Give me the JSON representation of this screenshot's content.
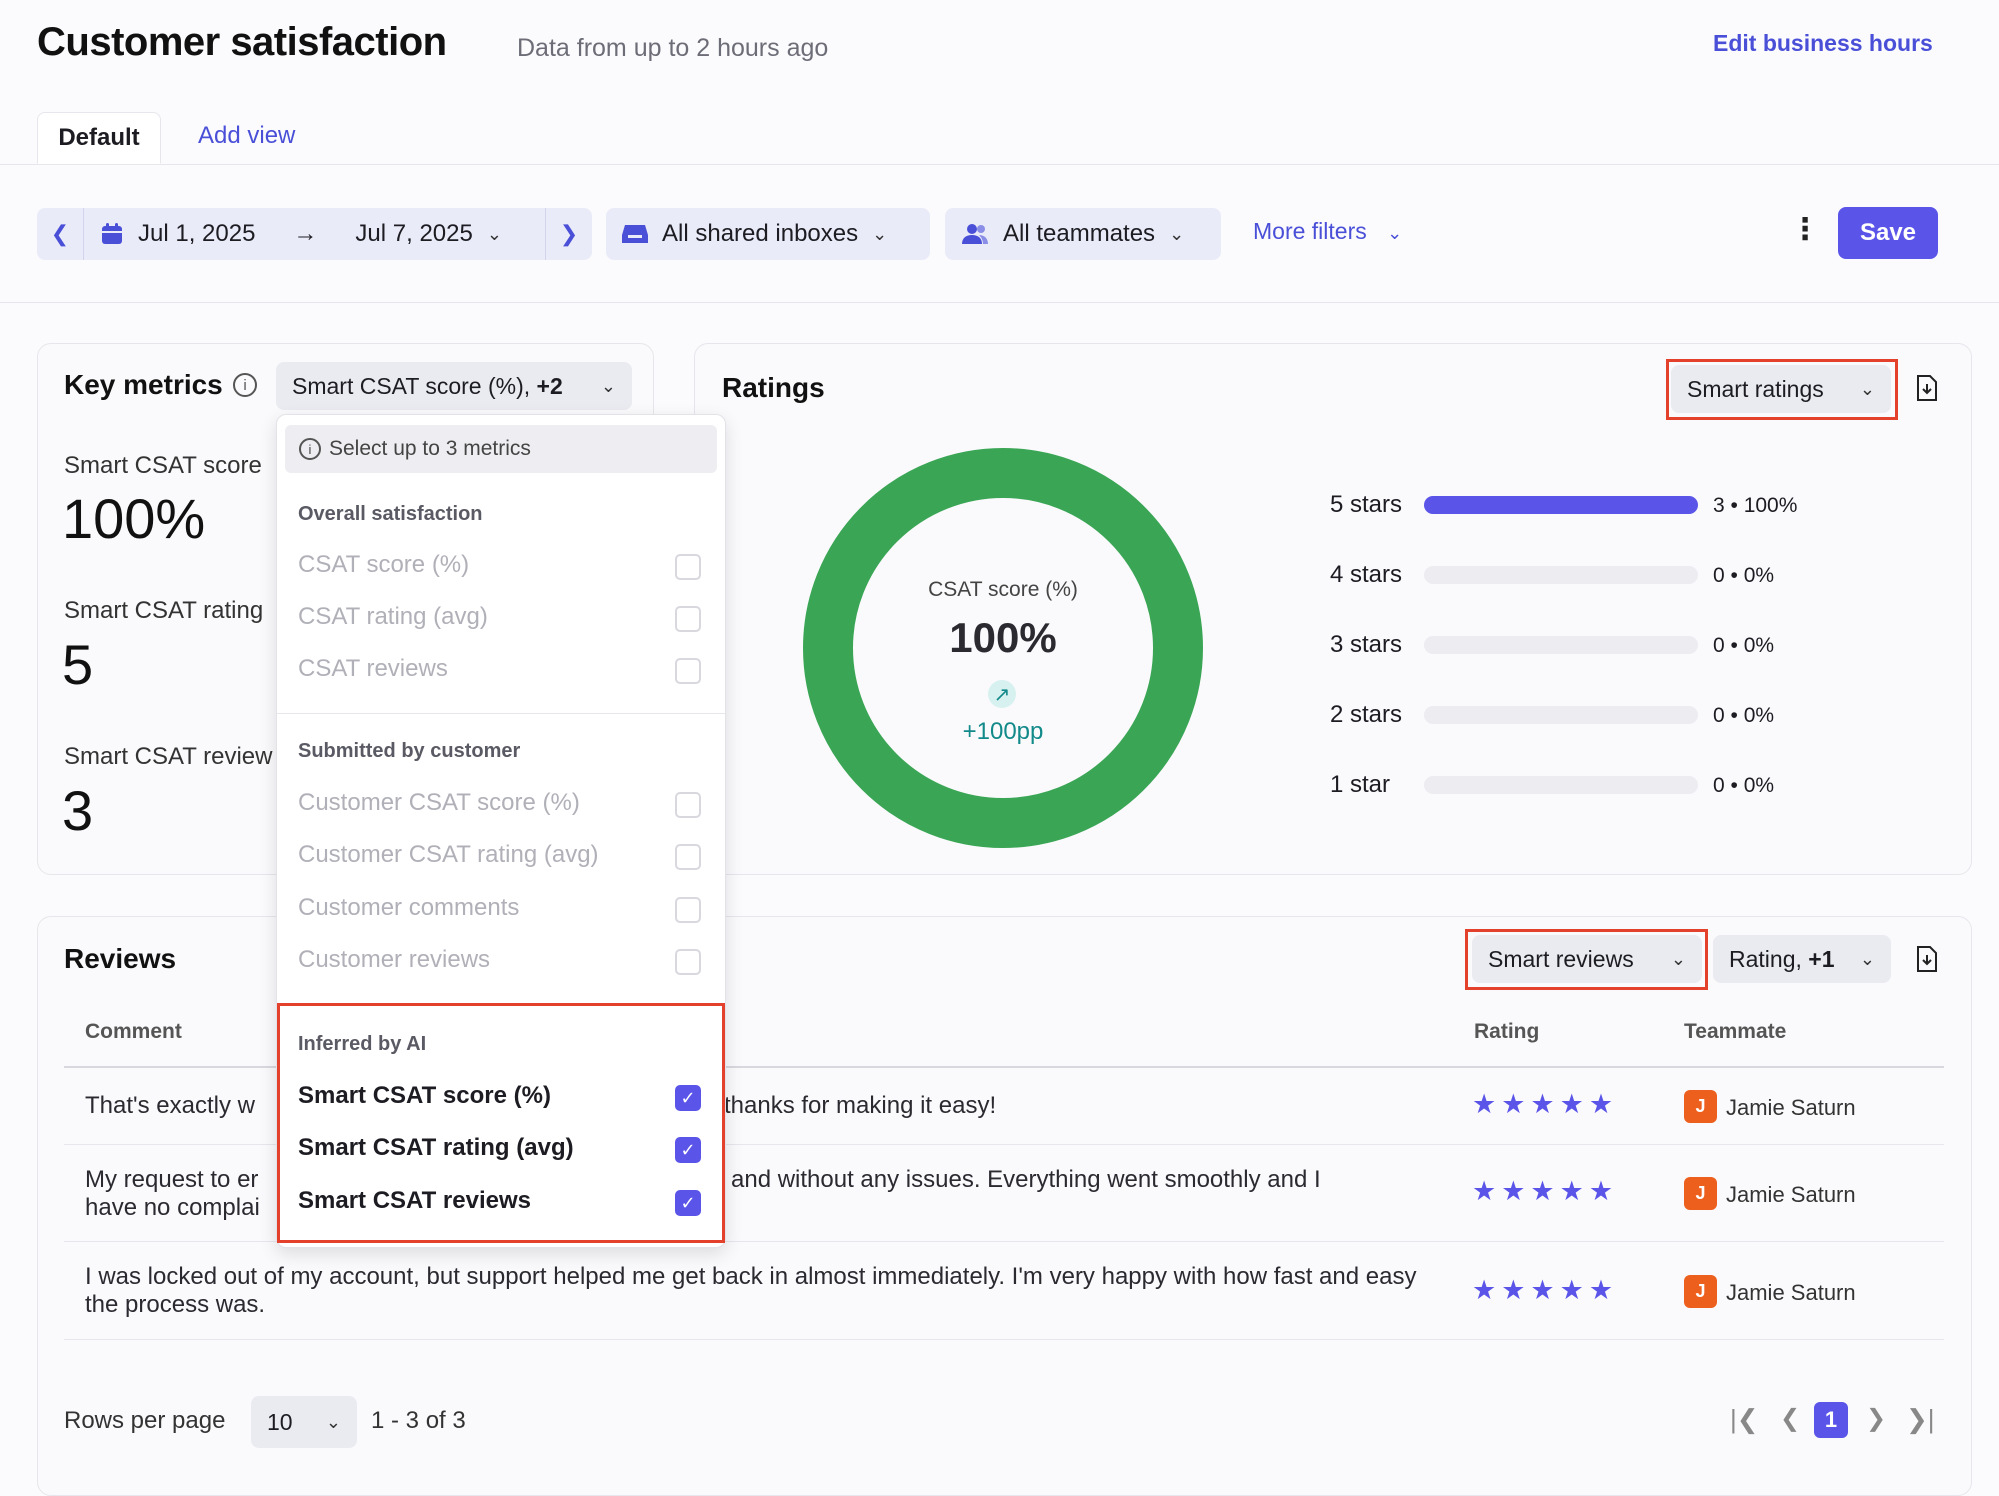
{
  "header": {
    "title": "Customer satisfaction",
    "subtitle": "Data from up to 2 hours ago",
    "edit_hours": "Edit business hours"
  },
  "tabs": {
    "default": "Default",
    "add_view": "Add view"
  },
  "filters": {
    "date_from": "Jul 1, 2025",
    "date_to": "Jul 7, 2025",
    "inboxes": "All shared inboxes",
    "teammates": "All teammates",
    "more": "More filters",
    "save": "Save"
  },
  "key_metrics": {
    "title": "Key metrics",
    "selector": "Smart CSAT score (%), ",
    "selector_bold": "+2",
    "metrics": [
      {
        "label": "Smart CSAT score",
        "value": "100%"
      },
      {
        "label": "Smart CSAT rating",
        "value": "5"
      },
      {
        "label": "Smart CSAT review",
        "value": "3"
      }
    ]
  },
  "dropdown": {
    "info": "Select up to 3 metrics",
    "groups": [
      {
        "heading": "Overall satisfaction",
        "items": [
          "CSAT score (%)",
          "CSAT rating (avg)",
          "CSAT reviews"
        ]
      },
      {
        "heading": "Submitted by customer",
        "items": [
          "Customer CSAT score (%)",
          "Customer CSAT rating (avg)",
          "Customer comments",
          "Customer reviews"
        ]
      },
      {
        "heading": "Inferred by AI",
        "items": [
          "Smart CSAT score (%)",
          "Smart CSAT rating (avg)",
          "Smart CSAT reviews"
        ]
      }
    ]
  },
  "ratings": {
    "title": "Ratings",
    "selector": "Smart ratings",
    "donut_label": "CSAT score (%)",
    "donut_value": "100%",
    "donut_delta": "+100pp",
    "donut_color": "#3aa655",
    "bars": [
      {
        "label": "5 stars",
        "value": "3 • 100%",
        "fraction": 1.0
      },
      {
        "label": "4 stars",
        "value": "0 • 0%",
        "fraction": 0
      },
      {
        "label": "3 stars",
        "value": "0 • 0%",
        "fraction": 0
      },
      {
        "label": "2 stars",
        "value": "0 • 0%",
        "fraction": 0
      },
      {
        "label": "1 star",
        "value": "0 • 0%",
        "fraction": 0
      }
    ]
  },
  "reviews": {
    "title": "Reviews",
    "selector": "Smart reviews",
    "sort": "Rating, ",
    "sort_bold": "+1",
    "columns": {
      "comment": "Comment",
      "rating": "Rating",
      "teammate": "Teammate"
    },
    "rows": [
      {
        "comment_left": "That's exactly w",
        "comment_right": "thanks for making it easy!",
        "rating": "★★★★★",
        "avatar": "J",
        "teammate": "Jamie Saturn"
      },
      {
        "comment_left": "My request to er",
        "comment_left2": "have no complai",
        "comment_right": "and without any issues. Everything went smoothly and I",
        "rating": "★★★★★",
        "avatar": "J",
        "teammate": "Jamie Saturn"
      },
      {
        "comment_full": "I was locked out of my account, but support helped me get back in almost immediately. I'm very happy with how fast and easy the process was.",
        "rating": "★★★★★",
        "avatar": "J",
        "teammate": "Jamie Saturn"
      }
    ],
    "footer": {
      "rows_label": "Rows per page",
      "rows_value": "10",
      "range": "1 - 3 of 3",
      "page": "1"
    }
  },
  "colors": {
    "accent": "#5a54e8",
    "link": "#4a4fd8",
    "highlight": "#e4412d"
  }
}
